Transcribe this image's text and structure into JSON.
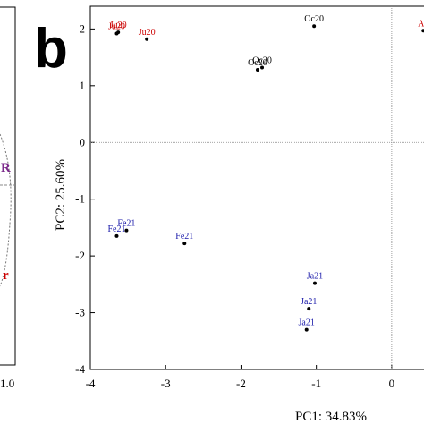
{
  "panel_label": "b",
  "colors": {
    "Oc20": "#000000",
    "Ju20": "#cc0000",
    "Ap": "#cc0000",
    "Fe21": "#1a1aaa",
    "Ja21": "#1a1aaa",
    "loading_R": "#7b2a8a",
    "loading_r": "#cc0000"
  },
  "left_panel": {
    "ticks": [
      "1.0"
    ],
    "fragments": [
      {
        "text": "R",
        "color": "#7b2a8a"
      },
      {
        "text": "r",
        "color": "#cc0000"
      }
    ]
  },
  "chart_data": {
    "type": "scatter",
    "xlabel": "PC1: 34.83%",
    "ylabel": "PC2: 25.60%",
    "xlim": [
      -4,
      0.5
    ],
    "ylim": [
      -4,
      2.4
    ],
    "xticks": [
      -4,
      -3,
      -2,
      -1,
      0
    ],
    "yticks": [
      -4,
      -3,
      -2,
      -1,
      0,
      1,
      2
    ],
    "xtick_labels": [
      "-4",
      "-3",
      "-2",
      "-1",
      "0"
    ],
    "ytick_labels": [
      "-4",
      "-3",
      "-2",
      "-1",
      "0",
      "1",
      "2"
    ],
    "reference_lines": {
      "x": 0,
      "y": 0
    },
    "points": [
      {
        "x": -3.65,
        "y": 1.92,
        "label": "Ju20",
        "group": "Ju20"
      },
      {
        "x": -3.63,
        "y": 1.94,
        "label": "Ju20",
        "group": "Ju20"
      },
      {
        "x": -3.25,
        "y": 1.82,
        "label": "Ju20",
        "group": "Ju20"
      },
      {
        "x": -1.03,
        "y": 2.05,
        "label": "Oc20",
        "group": "Oc20"
      },
      {
        "x": -1.78,
        "y": 1.28,
        "label": "Oc20",
        "group": "Oc20"
      },
      {
        "x": -1.72,
        "y": 1.32,
        "label": "Oc20",
        "group": "Oc20"
      },
      {
        "x": -3.65,
        "y": -1.65,
        "label": "Fe21",
        "group": "Fe21"
      },
      {
        "x": -3.52,
        "y": -1.55,
        "label": "Fe21",
        "group": "Fe21"
      },
      {
        "x": -2.75,
        "y": -1.78,
        "label": "Fe21",
        "group": "Fe21"
      },
      {
        "x": -1.02,
        "y": -2.48,
        "label": "Ja21",
        "group": "Ja21"
      },
      {
        "x": -1.1,
        "y": -2.93,
        "label": "Ja21",
        "group": "Ja21"
      },
      {
        "x": -1.13,
        "y": -3.3,
        "label": "Ja21",
        "group": "Ja21"
      },
      {
        "x": 0.42,
        "y": 1.97,
        "label": "Ap",
        "group": "Ap"
      }
    ]
  }
}
